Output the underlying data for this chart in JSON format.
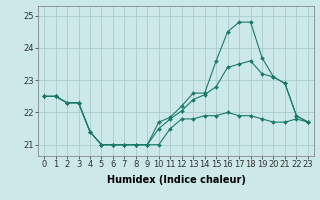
{
  "background_color": "#cce8e8",
  "grid_color": "#aacccc",
  "line_color": "#1a7a6a",
  "marker_color": "#1a7a6a",
  "xlabel": "Humidex (Indice chaleur)",
  "xlabel_fontsize": 7,
  "tick_fontsize": 6,
  "xlim": [
    -0.5,
    23.5
  ],
  "ylim": [
    20.65,
    25.3
  ],
  "yticks": [
    21,
    22,
    23,
    24,
    25
  ],
  "xticks": [
    0,
    1,
    2,
    3,
    4,
    5,
    6,
    7,
    8,
    9,
    10,
    11,
    12,
    13,
    14,
    15,
    16,
    17,
    18,
    19,
    20,
    21,
    22,
    23
  ],
  "series": [
    {
      "x": [
        0,
        1,
        2,
        3,
        4,
        5,
        6,
        7,
        8,
        9,
        10,
        11,
        12,
        13,
        14,
        15,
        16,
        17,
        18,
        19,
        20,
        21,
        22,
        23
      ],
      "y": [
        22.5,
        22.5,
        22.3,
        22.3,
        21.4,
        21.0,
        21.0,
        21.0,
        21.0,
        21.0,
        21.7,
        21.85,
        22.2,
        22.6,
        22.6,
        23.6,
        24.5,
        24.8,
        24.8,
        23.7,
        23.1,
        22.9,
        21.9,
        21.7
      ]
    },
    {
      "x": [
        0,
        1,
        2,
        3,
        4,
        5,
        6,
        7,
        8,
        9,
        10,
        11,
        12,
        13,
        14,
        15,
        16,
        17,
        18,
        19,
        20,
        21,
        22,
        23
      ],
      "y": [
        22.5,
        22.5,
        22.3,
        22.3,
        21.4,
        21.0,
        21.0,
        21.0,
        21.0,
        21.0,
        21.5,
        21.8,
        22.05,
        22.4,
        22.55,
        22.8,
        23.4,
        23.5,
        23.6,
        23.2,
        23.1,
        22.9,
        21.9,
        21.7
      ]
    },
    {
      "x": [
        0,
        1,
        2,
        3,
        4,
        5,
        6,
        7,
        8,
        9,
        10,
        11,
        12,
        13,
        14,
        15,
        16,
        17,
        18,
        19,
        20,
        21,
        22,
        23
      ],
      "y": [
        22.5,
        22.5,
        22.3,
        22.3,
        21.4,
        21.0,
        21.0,
        21.0,
        21.0,
        21.0,
        21.0,
        21.5,
        21.8,
        21.8,
        21.9,
        21.9,
        22.0,
        21.9,
        21.9,
        21.8,
        21.7,
        21.7,
        21.8,
        21.7
      ]
    }
  ]
}
